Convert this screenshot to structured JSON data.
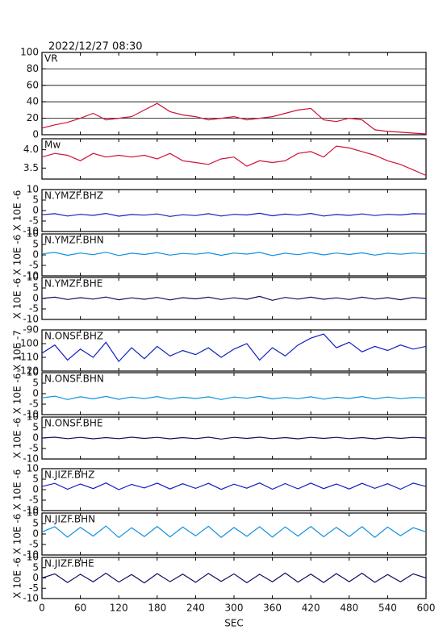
{
  "title": "2022/12/27 08:30",
  "chart_data": [
    {
      "type": "line",
      "title": "VR",
      "color": "#d0103a",
      "grid": true,
      "xlim": [
        0,
        600
      ],
      "ylim": [
        0,
        100
      ],
      "yticks": [
        0,
        20,
        40,
        60,
        80,
        100
      ],
      "x": [
        0,
        20,
        40,
        60,
        80,
        100,
        120,
        140,
        160,
        180,
        200,
        220,
        240,
        260,
        280,
        300,
        320,
        340,
        360,
        380,
        400,
        420,
        440,
        460,
        480,
        500,
        520,
        540,
        560,
        580,
        600
      ],
      "values": [
        8,
        12,
        15,
        20,
        26,
        18,
        20,
        22,
        30,
        38,
        28,
        24,
        22,
        18,
        20,
        22,
        18,
        20,
        22,
        26,
        30,
        32,
        18,
        16,
        20,
        18,
        6,
        4,
        3,
        2,
        1
      ]
    },
    {
      "type": "line",
      "title": "Mw",
      "color": "#d0103a",
      "grid": false,
      "xlim": [
        0,
        600
      ],
      "ylim": [
        3.2,
        4.3
      ],
      "yticks": [
        3.5,
        {
          "value": 4,
          "label": "4.0"
        }
      ],
      "x": [
        0,
        20,
        40,
        60,
        80,
        100,
        120,
        140,
        160,
        180,
        200,
        220,
        240,
        260,
        280,
        300,
        320,
        340,
        360,
        380,
        400,
        420,
        440,
        460,
        480,
        500,
        520,
        540,
        560,
        580,
        600
      ],
      "values": [
        3.8,
        3.9,
        3.85,
        3.7,
        3.9,
        3.8,
        3.85,
        3.8,
        3.85,
        3.75,
        3.9,
        3.7,
        3.65,
        3.6,
        3.75,
        3.8,
        3.55,
        3.7,
        3.65,
        3.7,
        3.9,
        3.95,
        3.8,
        4.1,
        4.05,
        3.95,
        3.85,
        3.7,
        3.6,
        3.45,
        3.3
      ]
    },
    {
      "type": "line",
      "title": "N.YMZF.BHZ",
      "ylabel": "X 10E -6",
      "color": "#1020c0",
      "xlim": [
        0,
        600
      ],
      "ylim": [
        -10,
        10
      ],
      "yticks": [
        -10,
        -5,
        0,
        5,
        10
      ],
      "x": [
        0,
        20,
        40,
        60,
        80,
        100,
        120,
        140,
        160,
        180,
        200,
        220,
        240,
        260,
        280,
        300,
        320,
        340,
        360,
        380,
        400,
        420,
        440,
        460,
        480,
        500,
        520,
        540,
        560,
        580,
        600
      ],
      "values": [
        -2,
        -1.5,
        -2.6,
        -1.8,
        -2.3,
        -1.4,
        -2.7,
        -1.9,
        -2.2,
        -1.6,
        -2.8,
        -2,
        -2.4,
        -1.5,
        -2.6,
        -1.8,
        -2.1,
        -1.3,
        -2.5,
        -1.7,
        -2.2,
        -1.4,
        -2.6,
        -1.9,
        -2.3,
        -1.6,
        -2.4,
        -1.8,
        -2.1,
        -1.5,
        -1.6
      ]
    },
    {
      "type": "line",
      "title": "N.YMZF.BHN",
      "ylabel": "X 10E -6",
      "color": "#1090e0",
      "xlim": [
        0,
        600
      ],
      "ylim": [
        -10,
        10
      ],
      "yticks": [
        -10,
        -5,
        0,
        5,
        10
      ],
      "x": [
        0,
        20,
        40,
        60,
        80,
        100,
        120,
        140,
        160,
        180,
        200,
        220,
        240,
        260,
        280,
        300,
        320,
        340,
        360,
        380,
        400,
        420,
        440,
        460,
        480,
        500,
        520,
        540,
        560,
        580,
        600
      ],
      "values": [
        0.5,
        1.2,
        -0.2,
        0.9,
        0.1,
        1.3,
        -0.3,
        0.8,
        0.2,
        1.1,
        -0.1,
        0.7,
        0.3,
        1.0,
        -0.2,
        0.9,
        0.4,
        1.2,
        -0.3,
        0.8,
        0.1,
        1.1,
        0,
        0.9,
        0.2,
        1.0,
        -0.1,
        0.8,
        0.3,
        0.9,
        0.5
      ]
    },
    {
      "type": "line",
      "title": "N.YMZF.BHE",
      "ylabel": "X 10E -6",
      "color": "#101060",
      "xlim": [
        0,
        600
      ],
      "ylim": [
        -10,
        10
      ],
      "yticks": [
        -10,
        -5,
        0,
        5,
        10
      ],
      "x": [
        0,
        20,
        40,
        60,
        80,
        100,
        120,
        140,
        160,
        180,
        200,
        220,
        240,
        260,
        280,
        300,
        320,
        340,
        360,
        380,
        400,
        420,
        440,
        460,
        480,
        500,
        520,
        540,
        560,
        580,
        600
      ],
      "values": [
        0,
        0.6,
        -0.5,
        0.4,
        -0.3,
        0.7,
        -0.6,
        0.3,
        -0.4,
        0.5,
        -0.7,
        0.4,
        -0.2,
        0.6,
        -0.5,
        0.3,
        -0.4,
        1.0,
        -0.9,
        0.5,
        -0.3,
        0.6,
        -0.4,
        0.3,
        -0.5,
        0.6,
        -0.3,
        0.4,
        -0.6,
        0.5,
        0
      ]
    },
    {
      "type": "line",
      "title": "N.ONSF.BHZ",
      "ylabel": "X 10E -7",
      "color": "#1020c0",
      "xlim": [
        0,
        600
      ],
      "ylim": [
        -120,
        -90
      ],
      "yticks": [
        -120,
        -110,
        -100,
        -90
      ],
      "x": [
        0,
        20,
        40,
        60,
        80,
        100,
        120,
        140,
        160,
        180,
        200,
        220,
        240,
        260,
        280,
        300,
        320,
        340,
        360,
        380,
        400,
        420,
        440,
        460,
        480,
        500,
        520,
        540,
        560,
        580,
        600
      ],
      "values": [
        -107,
        -101,
        -112,
        -104,
        -110,
        -99,
        -113,
        -103,
        -111,
        -102,
        -109,
        -105,
        -108,
        -103,
        -110,
        -104,
        -100,
        -112,
        -103,
        -109,
        -101,
        -96,
        -93,
        -103,
        -99,
        -106,
        -102,
        -105,
        -101,
        -104,
        -102
      ]
    },
    {
      "type": "line",
      "title": "N.ONSF.BHN",
      "ylabel": "X 10E -6",
      "color": "#1090e0",
      "xlim": [
        0,
        600
      ],
      "ylim": [
        -10,
        10
      ],
      "yticks": [
        -10,
        -5,
        0,
        5,
        10
      ],
      "x": [
        0,
        20,
        40,
        60,
        80,
        100,
        120,
        140,
        160,
        180,
        200,
        220,
        240,
        260,
        280,
        300,
        320,
        340,
        360,
        380,
        400,
        420,
        440,
        460,
        480,
        500,
        520,
        540,
        560,
        580,
        600
      ],
      "values": [
        -2,
        -1.2,
        -2.8,
        -1.5,
        -2.5,
        -1.3,
        -2.7,
        -1.6,
        -2.4,
        -1.4,
        -2.6,
        -1.7,
        -2.3,
        -1.5,
        -2.8,
        -1.6,
        -2.2,
        -1.3,
        -2.5,
        -1.8,
        -2.4,
        -1.5,
        -2.6,
        -1.7,
        -2.3,
        -1.4,
        -2.5,
        -1.6,
        -2.4,
        -1.8,
        -2
      ]
    },
    {
      "type": "line",
      "title": "N.ONSF.BHE",
      "ylabel": "X 10E -6",
      "color": "#101060",
      "xlim": [
        0,
        600
      ],
      "ylim": [
        -10,
        10
      ],
      "yticks": [
        -10,
        -5,
        0,
        5,
        10
      ],
      "x": [
        0,
        20,
        40,
        60,
        80,
        100,
        120,
        140,
        160,
        180,
        200,
        220,
        240,
        260,
        280,
        300,
        320,
        340,
        360,
        380,
        400,
        420,
        440,
        460,
        480,
        500,
        520,
        540,
        560,
        580,
        600
      ],
      "values": [
        0,
        0.4,
        -0.3,
        0.3,
        -0.4,
        0.2,
        -0.3,
        0.4,
        -0.2,
        0.3,
        -0.4,
        0.2,
        -0.3,
        0.4,
        -0.5,
        0.3,
        -0.2,
        0.4,
        -0.3,
        0.2,
        -0.4,
        0.3,
        -0.2,
        0.3,
        -0.3,
        0.2,
        -0.4,
        0.3,
        -0.2,
        0.3,
        0
      ]
    },
    {
      "type": "line",
      "title": "N.JIZF.BHZ",
      "ylabel": "X 10E -6",
      "color": "#1020c0",
      "xlim": [
        0,
        600
      ],
      "ylim": [
        -10,
        10
      ],
      "yticks": [
        -10,
        -5,
        0,
        5,
        10
      ],
      "x": [
        0,
        20,
        40,
        60,
        80,
        100,
        120,
        140,
        160,
        180,
        200,
        220,
        240,
        260,
        280,
        300,
        320,
        340,
        360,
        380,
        400,
        420,
        440,
        460,
        480,
        500,
        520,
        540,
        560,
        580,
        600
      ],
      "values": [
        1.5,
        3,
        0.2,
        2.7,
        0.5,
        3.2,
        0,
        2.5,
        0.8,
        3.1,
        0.3,
        2.8,
        0.6,
        3,
        0.1,
        2.6,
        0.7,
        3.2,
        0.2,
        2.9,
        0.4,
        3.1,
        0.5,
        2.7,
        0.3,
        3,
        0.6,
        2.8,
        0.2,
        3.1,
        1.5
      ]
    },
    {
      "type": "line",
      "title": "N.JIZF.BHN",
      "ylabel": "X 10E -6",
      "color": "#1090e0",
      "xlim": [
        0,
        600
      ],
      "ylim": [
        -10,
        10
      ],
      "yticks": [
        -10,
        -5,
        0,
        5,
        10
      ],
      "x": [
        0,
        20,
        40,
        60,
        80,
        100,
        120,
        140,
        160,
        180,
        200,
        220,
        240,
        260,
        280,
        300,
        320,
        340,
        360,
        380,
        400,
        420,
        440,
        460,
        480,
        500,
        520,
        540,
        560,
        580,
        600
      ],
      "values": [
        1,
        3.5,
        -1.5,
        3.2,
        -1,
        3.8,
        -1.7,
        3,
        -1.2,
        3.6,
        -1.4,
        3.3,
        -0.9,
        3.7,
        -1.6,
        3.1,
        -1.1,
        3.5,
        -1.5,
        3.4,
        -1,
        3.6,
        -1.3,
        3.2,
        -1.2,
        3.5,
        -1.6,
        3.3,
        -0.8,
        3,
        1
      ]
    },
    {
      "type": "line",
      "title": "N.JIZF.BHE",
      "ylabel": "X 10E -6",
      "xlabel": "SEC",
      "color": "#101060",
      "xlim": [
        0,
        600
      ],
      "xticks": [
        0,
        60,
        120,
        180,
        240,
        300,
        360,
        420,
        480,
        540,
        600
      ],
      "ylim": [
        -10,
        10
      ],
      "yticks": [
        -10,
        -5,
        0,
        5,
        10
      ],
      "x": [
        0,
        20,
        40,
        60,
        80,
        100,
        120,
        140,
        160,
        180,
        200,
        220,
        240,
        260,
        280,
        300,
        320,
        340,
        360,
        380,
        400,
        420,
        440,
        460,
        480,
        500,
        520,
        540,
        560,
        580,
        600
      ],
      "values": [
        0,
        2,
        -2.2,
        1.8,
        -1.9,
        2.3,
        -2,
        1.7,
        -2.4,
        2.1,
        -1.8,
        1.9,
        -2.1,
        2.2,
        -1.7,
        2,
        -2.3,
        1.8,
        -1.9,
        2.4,
        -2,
        1.9,
        -2.2,
        2.1,
        -1.8,
        2.3,
        -2.1,
        1.7,
        -1.9,
        2,
        0
      ]
    }
  ]
}
